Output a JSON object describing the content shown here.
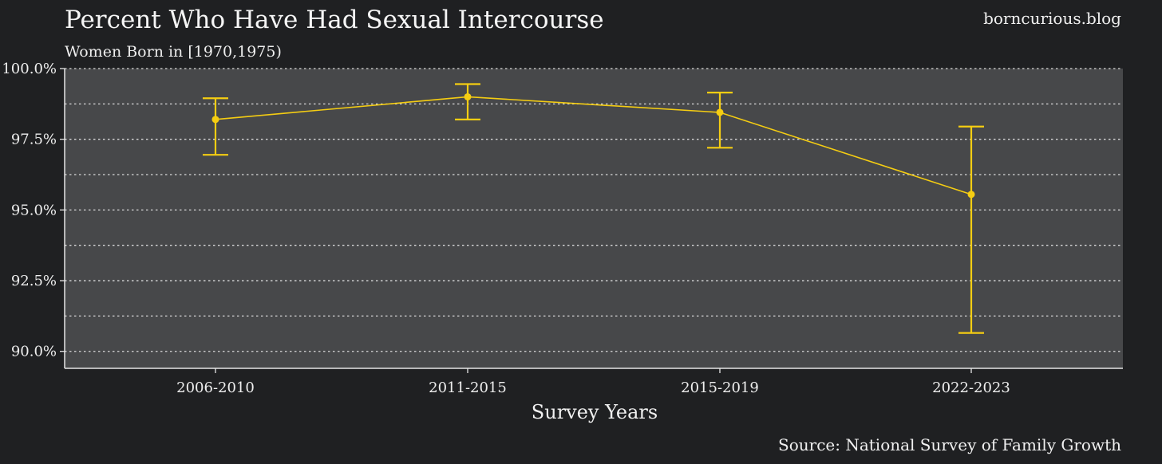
{
  "chart_data": {
    "type": "line",
    "title": "Percent Who Have Had Sexual Intercourse",
    "subtitle": "Women Born in [1970,1975)",
    "brand": "borncurious.blog",
    "source": "Source: National Survey of Family Growth",
    "xlabel": "Survey Years",
    "ylabel": "",
    "categories": [
      "2006-2010",
      "2011-2015",
      "2015-2019",
      "2022-2023"
    ],
    "series": [
      {
        "values": [
          98.2,
          99.0,
          98.45,
          95.55
        ],
        "lower": [
          96.95,
          98.2,
          97.2,
          90.65
        ],
        "upper": [
          98.95,
          99.45,
          99.15,
          97.95
        ]
      }
    ],
    "ylim": [
      89.4,
      100.0
    ],
    "yticks": [
      90.0,
      92.5,
      95.0,
      97.5,
      100.0
    ],
    "ytick_labels": [
      "90.0%",
      "92.5%",
      "95.0%",
      "97.5%",
      "100.0%"
    ],
    "grid": true,
    "colors": {
      "background": "#1f2022",
      "panel": "#47484a",
      "series": "#f5cd12",
      "grid": "#d9d9d9",
      "text": "#f2f2f2"
    }
  }
}
